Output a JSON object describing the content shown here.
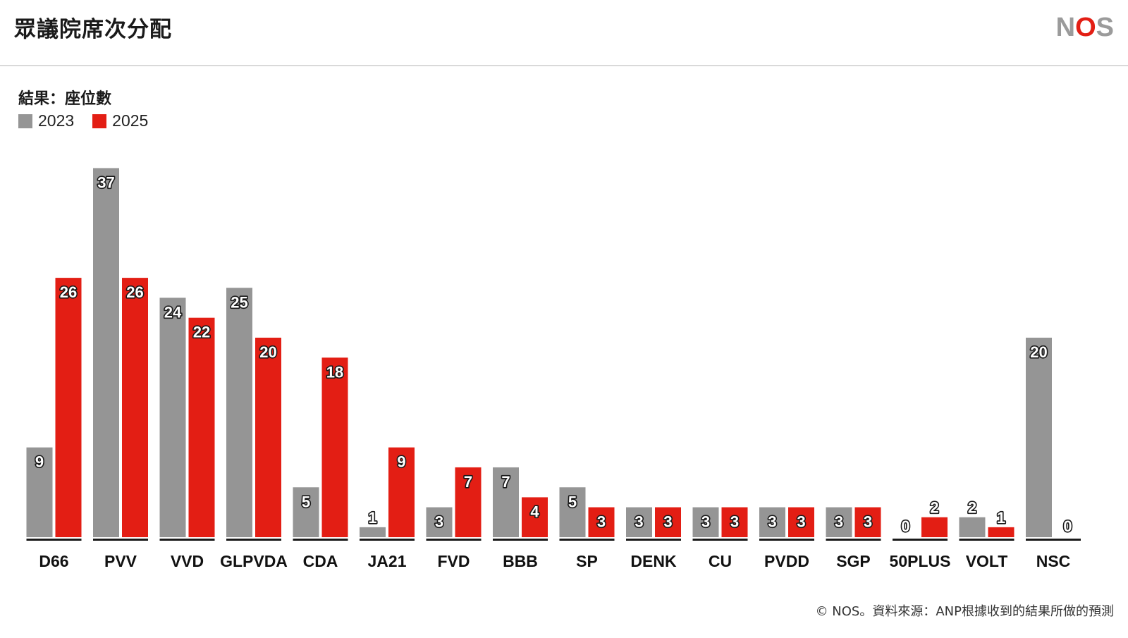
{
  "page": {
    "title": "眾議院席次分配",
    "logo_text": "NOS",
    "subtitle": "結果：座位數",
    "footer": "© NOS。資料來源：ANP根據收到的結果所做的預測"
  },
  "colors": {
    "grey": "#959595",
    "red": "#e31e14",
    "axis": "#1a1a1a"
  },
  "chart_data": {
    "type": "bar",
    "title": "眾議院席次分配",
    "subtitle": "結果：座位數",
    "categories": [
      "D66",
      "PVV",
      "VVD",
      "GLPVDA",
      "CDA",
      "JA21",
      "FVD",
      "BBB",
      "SP",
      "DENK",
      "CU",
      "PVDD",
      "SGP",
      "50PLUS",
      "VOLT",
      "NSC"
    ],
    "series": [
      {
        "name": "2023",
        "color": "#959595",
        "values": [
          9,
          37,
          24,
          25,
          5,
          1,
          3,
          7,
          5,
          3,
          3,
          3,
          3,
          0,
          2,
          20
        ]
      },
      {
        "name": "2025",
        "color": "#e31e14",
        "values": [
          26,
          26,
          22,
          20,
          18,
          9,
          7,
          4,
          3,
          3,
          3,
          3,
          3,
          2,
          1,
          0
        ]
      }
    ],
    "ylim": [
      0,
      37
    ],
    "grid": false,
    "legend_position": "top-left",
    "xlabel": "",
    "ylabel": ""
  }
}
